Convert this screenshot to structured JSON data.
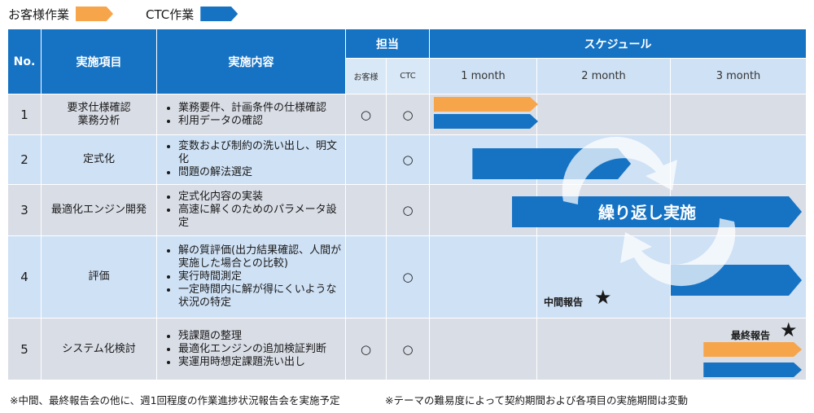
{
  "legend": {
    "customer": {
      "label": "お客様作業",
      "color": "#f7a54a"
    },
    "ctc": {
      "label": "CTC作業",
      "color": "#1673c4"
    }
  },
  "header": {
    "no": "No.",
    "item": "実施項目",
    "content": "実施内容",
    "owner": "担当",
    "schedule": "スケジュール",
    "owner_customer": "お客様",
    "owner_ctc": "CTC",
    "months": [
      "1 month",
      "2 month",
      "3 month"
    ]
  },
  "rows": [
    {
      "no": "1",
      "item_l1": "要求仕様確認",
      "item_l2": "業務分析",
      "content": [
        "業務要件、計画条件の仕様確認",
        "利用データの確認"
      ],
      "customer": "○",
      "ctc": "○"
    },
    {
      "no": "2",
      "item_l1": "定式化",
      "item_l2": "",
      "content": [
        "変数および制約の洗い出し、明文化",
        "問題の解法選定"
      ],
      "customer": "",
      "ctc": "○"
    },
    {
      "no": "3",
      "item_l1": "最適化エンジン開発",
      "item_l2": "",
      "content": [
        "定式化内容の実装",
        "高速に解くのためのパラメータ設定"
      ],
      "customer": "",
      "ctc": "○"
    },
    {
      "no": "4",
      "item_l1": "評価",
      "item_l2": "",
      "content": [
        "解の質評価(出力結果確認、人間が実施した場合との比較)",
        "実行時間測定",
        "一定時間内に解が得にくいような状況の特定"
      ],
      "customer": "",
      "ctc": "○"
    },
    {
      "no": "5",
      "item_l1": "システム化検討",
      "item_l2": "",
      "content": [
        "残課題の整理",
        "最適化エンジンの追加検証判断",
        "実運用時想定課題洗い出し"
      ],
      "customer": "○",
      "ctc": "○"
    }
  ],
  "schedule_bars": [
    {
      "row": 1,
      "type": "customer",
      "start": 0.0,
      "end": 1.0
    },
    {
      "row": 1,
      "type": "ctc",
      "start": 0.0,
      "end": 1.0
    },
    {
      "row": 2,
      "type": "ctc",
      "start": 0.37,
      "end": 1.7
    },
    {
      "row": 3,
      "type": "ctc",
      "start": 0.75,
      "end": 3.0
    },
    {
      "row": 4,
      "type": "ctc",
      "start": 2.0,
      "end": 3.0
    },
    {
      "row": 5,
      "type": "customer",
      "start": 2.25,
      "end": 3.0
    },
    {
      "row": 5,
      "type": "ctc",
      "start": 2.25,
      "end": 3.0
    }
  ],
  "cycle_label": "繰り返し実施",
  "milestones": {
    "interim": {
      "label": "中間報告",
      "symbol": "★"
    },
    "final": {
      "label": "最終報告",
      "symbol": "★"
    }
  },
  "footnotes": {
    "left": "※中間、最終報告会の他に、週1回程度の作業進捗状況報告会を実施予定",
    "right": "※テーマの難易度によって契約期間および各項目の実施期間は変動"
  }
}
